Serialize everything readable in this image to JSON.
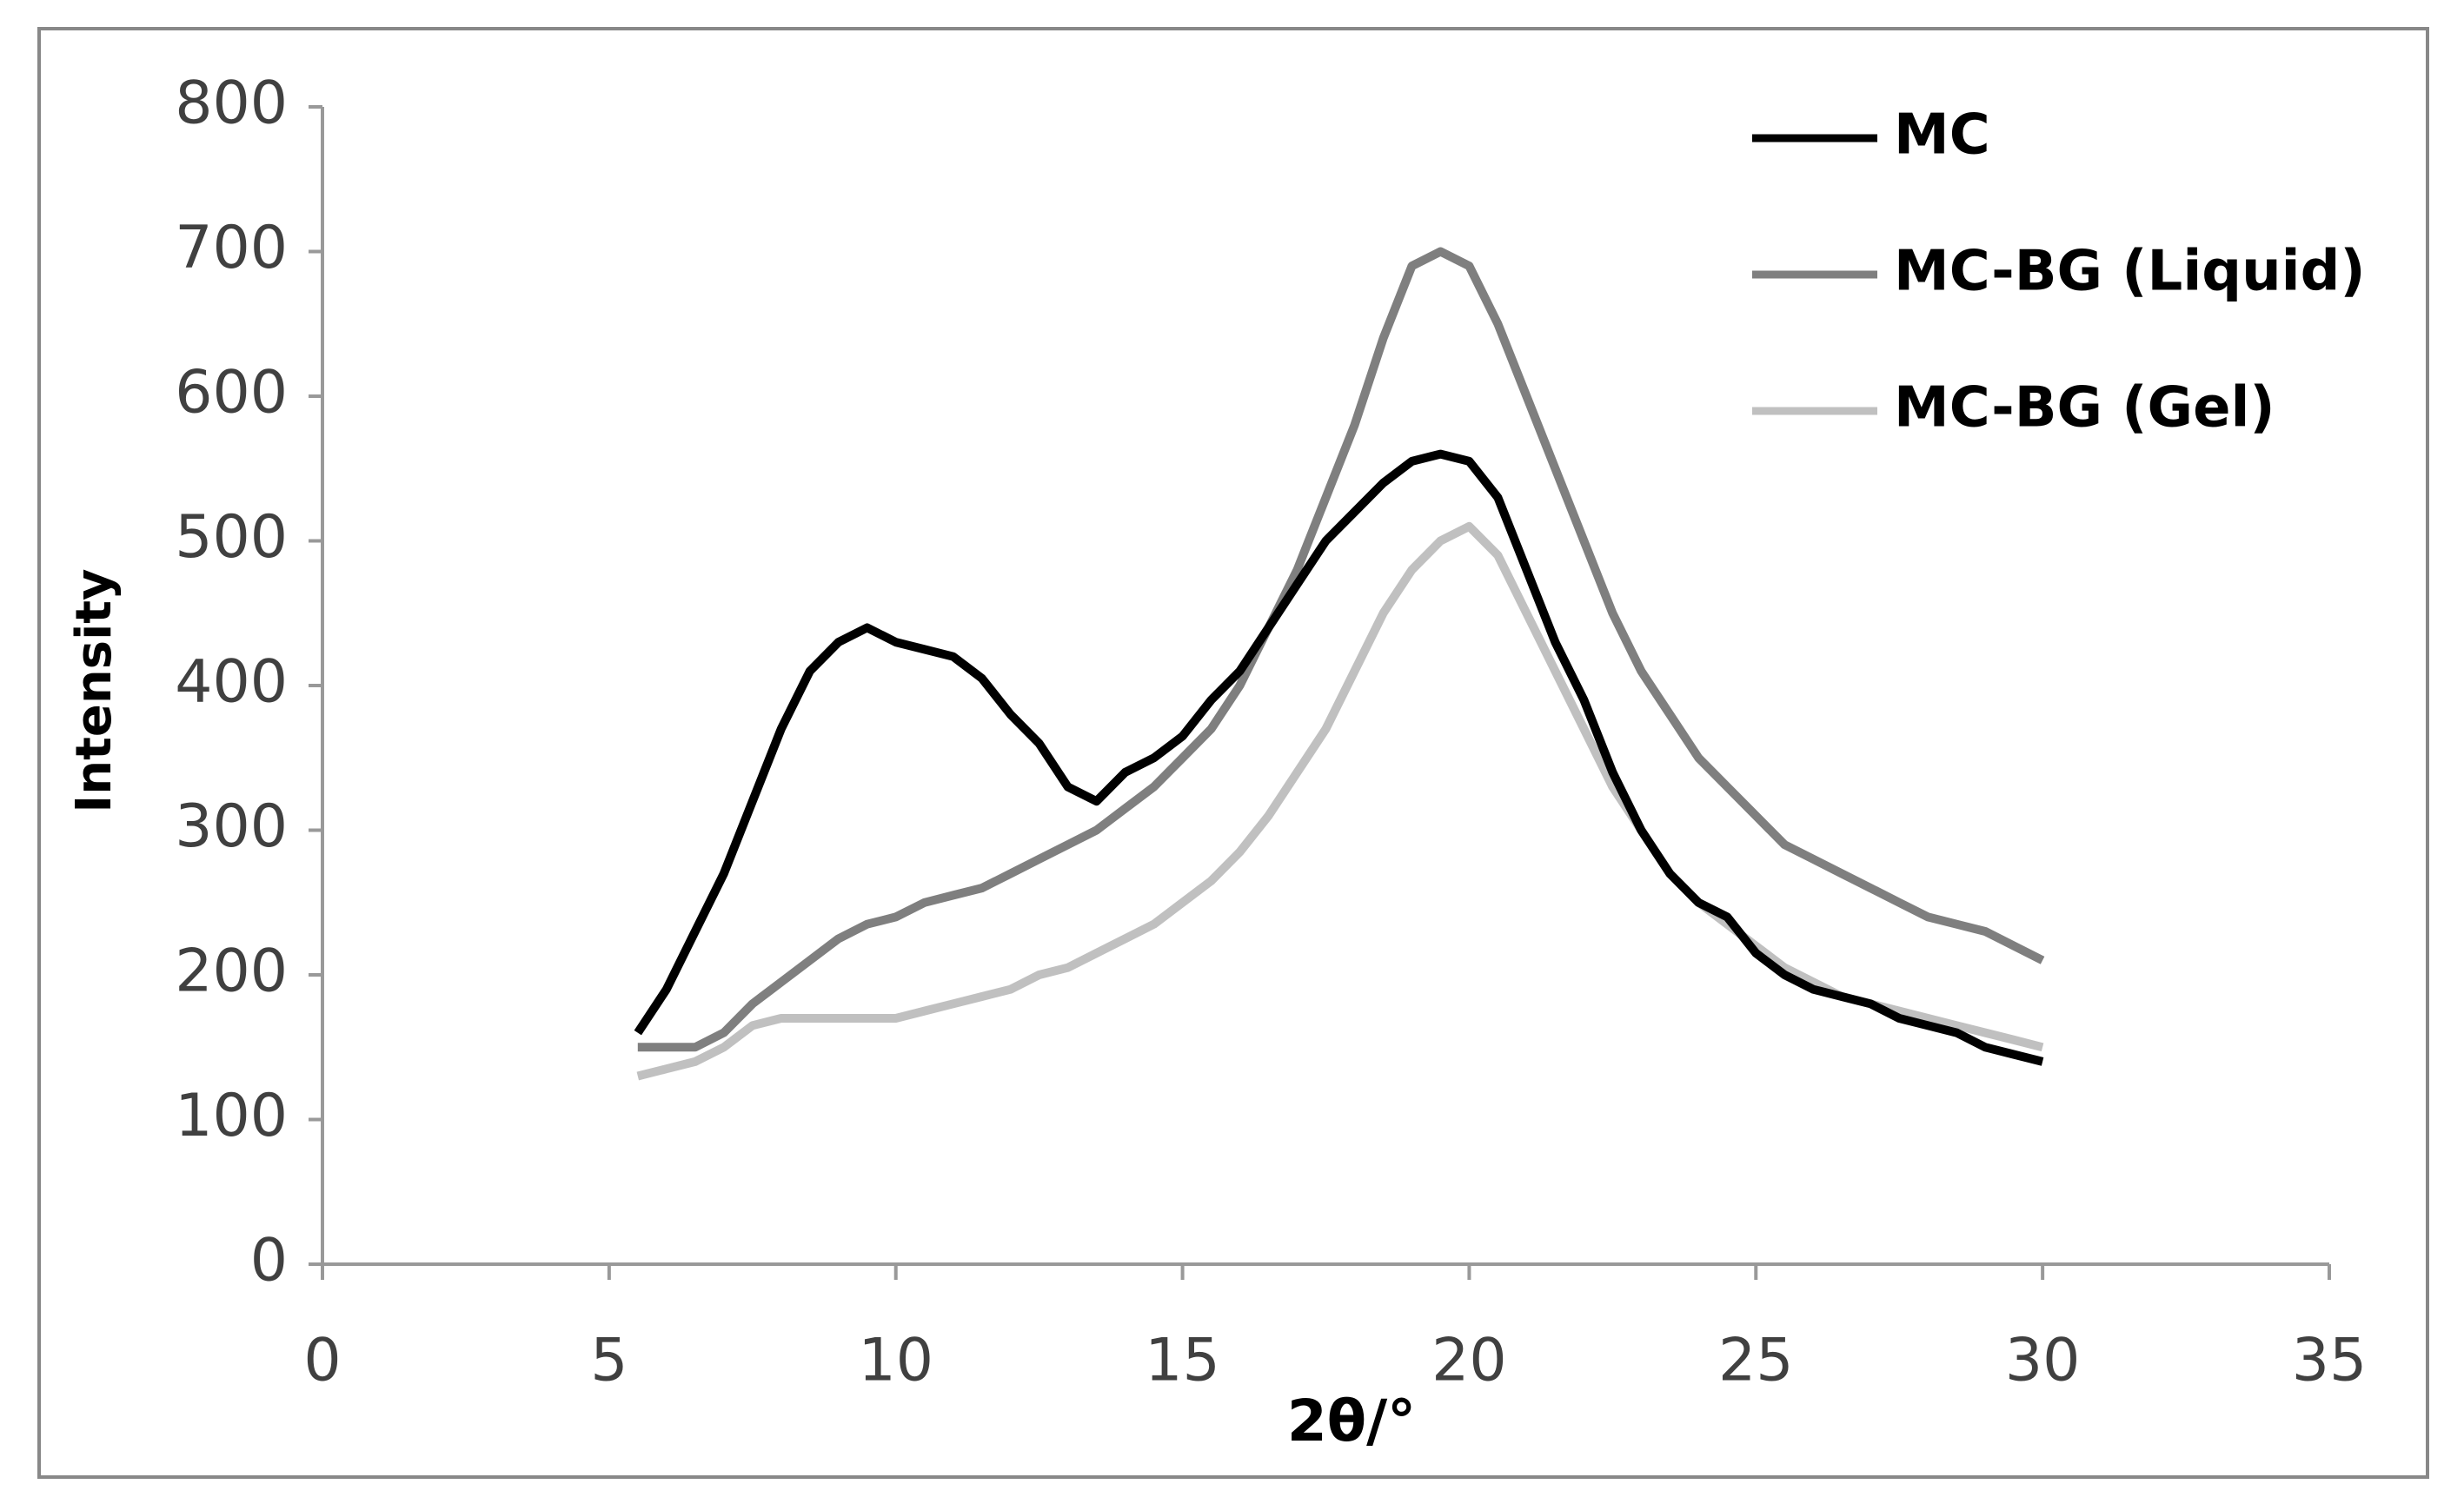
{
  "chart_data": {
    "type": "line",
    "xlabel": "2θ/°",
    "ylabel": "Intensity",
    "x": [
      5.5,
      6,
      6.5,
      7,
      7.5,
      8,
      8.5,
      9,
      9.5,
      10,
      10.5,
      11,
      11.5,
      12,
      12.5,
      13,
      13.5,
      14,
      14.5,
      15,
      15.5,
      16,
      16.5,
      17,
      17.5,
      18,
      18.5,
      19,
      19.5,
      20,
      20.5,
      21,
      21.5,
      22,
      22.5,
      23,
      23.5,
      24,
      24.5,
      25,
      25.5,
      26,
      26.5,
      27,
      27.5,
      28,
      28.5,
      29,
      29.5,
      30
    ],
    "series": [
      {
        "name": "MC",
        "color": "#000000",
        "values": [
          160,
          190,
          230,
          270,
          320,
          370,
          410,
          430,
          440,
          430,
          425,
          420,
          405,
          380,
          360,
          330,
          320,
          340,
          350,
          365,
          390,
          410,
          440,
          470,
          500,
          520,
          540,
          555,
          560,
          555,
          530,
          480,
          430,
          390,
          340,
          300,
          270,
          250,
          240,
          215,
          200,
          190,
          185,
          180,
          170,
          165,
          160,
          150,
          145,
          140
        ]
      },
      {
        "name": "MC-BG (Liquid)",
        "color": "#7f7f7f",
        "values": [
          150,
          150,
          150,
          160,
          180,
          195,
          210,
          225,
          235,
          240,
          250,
          255,
          260,
          270,
          280,
          290,
          300,
          315,
          330,
          350,
          370,
          400,
          440,
          480,
          530,
          580,
          640,
          690,
          700,
          690,
          650,
          600,
          550,
          500,
          450,
          410,
          380,
          350,
          330,
          310,
          290,
          280,
          270,
          260,
          250,
          240,
          235,
          230,
          220,
          210
        ]
      },
      {
        "name": "MC-BG (Gel)",
        "color": "#c0c0c0",
        "values": [
          130,
          135,
          140,
          150,
          165,
          170,
          170,
          170,
          170,
          170,
          175,
          180,
          185,
          190,
          200,
          205,
          215,
          225,
          235,
          250,
          265,
          285,
          310,
          340,
          370,
          410,
          450,
          480,
          500,
          510,
          490,
          450,
          410,
          370,
          330,
          300,
          270,
          250,
          235,
          220,
          205,
          195,
          185,
          180,
          175,
          170,
          165,
          160,
          155,
          150
        ]
      }
    ],
    "xlim": [
      0,
      35
    ],
    "xticks": [
      0,
      5,
      10,
      15,
      20,
      25,
      30,
      35
    ],
    "ylim": [
      0,
      800
    ],
    "yticks": [
      0,
      100,
      200,
      300,
      400,
      500,
      600,
      700,
      800
    ],
    "legend": "top-right"
  }
}
